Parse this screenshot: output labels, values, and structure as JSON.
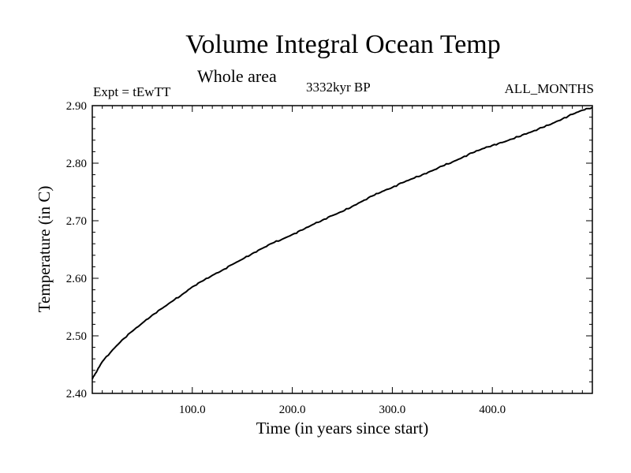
{
  "title": "Volume Integral Ocean Temp",
  "subtitle": "Whole area",
  "experiment": "Expt = tEwTT",
  "period": "3332kyr BP",
  "months": "ALL_MONTHS",
  "chart_data": {
    "type": "line",
    "title": "Volume Integral Ocean Temp",
    "xlabel": "Time (in years since start)",
    "ylabel": "Temperature (in C)",
    "xlim": [
      0,
      500
    ],
    "ylim": [
      2.4,
      2.9
    ],
    "xticks": [
      100,
      200,
      300,
      400
    ],
    "xtick_labels": [
      "100.0",
      "200.0",
      "300.0",
      "400.0"
    ],
    "yticks": [
      2.4,
      2.5,
      2.6,
      2.7,
      2.8,
      2.9
    ],
    "ytick_labels": [
      "2.40",
      "2.50",
      "2.60",
      "2.70",
      "2.80",
      "2.90"
    ],
    "grid": false,
    "series": [
      {
        "name": "Volume Integral Ocean Temp",
        "color": "#000000",
        "x": [
          0,
          5,
          10,
          20,
          30,
          40,
          50,
          60,
          70,
          80,
          90,
          100,
          110,
          120,
          130,
          140,
          150,
          160,
          170,
          180,
          190,
          200,
          210,
          220,
          230,
          240,
          250,
          260,
          270,
          280,
          290,
          300,
          310,
          320,
          330,
          340,
          350,
          360,
          370,
          380,
          390,
          400,
          410,
          420,
          430,
          440,
          450,
          460,
          470,
          480,
          490,
          500
        ],
        "y": [
          2.425,
          2.44,
          2.455,
          2.475,
          2.493,
          2.508,
          2.522,
          2.536,
          2.548,
          2.56,
          2.572,
          2.585,
          2.595,
          2.605,
          2.614,
          2.624,
          2.633,
          2.643,
          2.652,
          2.661,
          2.668,
          2.676,
          2.684,
          2.693,
          2.701,
          2.709,
          2.716,
          2.725,
          2.734,
          2.743,
          2.751,
          2.758,
          2.766,
          2.773,
          2.78,
          2.787,
          2.795,
          2.802,
          2.81,
          2.818,
          2.825,
          2.831,
          2.836,
          2.842,
          2.849,
          2.855,
          2.862,
          2.869,
          2.877,
          2.885,
          2.892,
          2.897
        ]
      }
    ]
  }
}
